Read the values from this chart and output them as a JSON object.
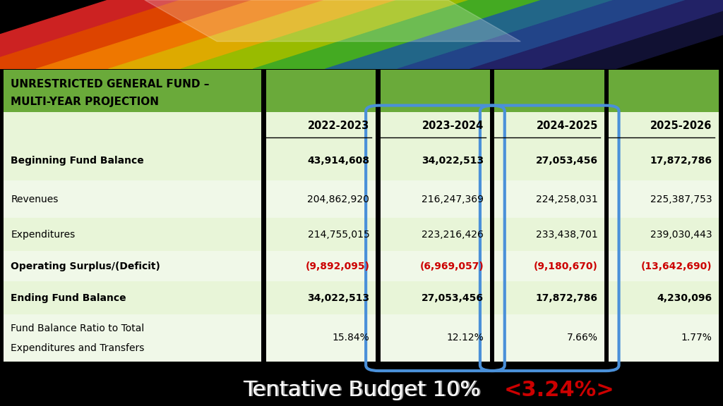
{
  "title_line1": "UNRESTRICTED GENERAL FUND –",
  "title_line2": "MULTI-YEAR PROJECTION",
  "header_bg": "#6aaa3a",
  "col_headers": [
    "2022-2023",
    "2023-2024",
    "2024-2025",
    "2025-2026"
  ],
  "rows": [
    {
      "label": "Beginning Fund Balance",
      "bold": true,
      "values": [
        "43,914,608",
        "34,022,513",
        "27,053,456",
        "17,872,786"
      ],
      "red": [
        false,
        false,
        false,
        false
      ]
    },
    {
      "label": "Revenues",
      "bold": false,
      "values": [
        "204,862,920",
        "216,247,369",
        "224,258,031",
        "225,387,753"
      ],
      "red": [
        false,
        false,
        false,
        false
      ]
    },
    {
      "label": "Expenditures",
      "bold": false,
      "values": [
        "214,755,015",
        "223,216,426",
        "233,438,701",
        "239,030,443"
      ],
      "red": [
        false,
        false,
        false,
        false
      ]
    },
    {
      "label": "Operating Surplus/(Deficit)",
      "bold": true,
      "values": [
        "(9,892,095)",
        "(6,969,057)",
        "(9,180,670)",
        "(13,642,690)"
      ],
      "red": [
        true,
        true,
        true,
        true
      ]
    },
    {
      "label": "Ending Fund Balance",
      "bold": true,
      "values": [
        "34,022,513",
        "27,053,456",
        "17,872,786",
        "4,230,096"
      ],
      "red": [
        false,
        false,
        false,
        false
      ]
    },
    {
      "label": "Fund Balance Ratio to Total\nExpenditures and Transfers",
      "bold": false,
      "values": [
        "15.84%",
        "12.12%",
        "7.66%",
        "1.77%"
      ],
      "red": [
        false,
        false,
        false,
        false
      ]
    }
  ],
  "row_bg_even": "#e8f5d8",
  "row_bg_odd": "#f0f8e8",
  "oval_color": "#4a90d9",
  "footer_white": "Tentative Budget",
  "footer_white2": "10%",
  "footer_red": "<3.24%>",
  "footer_color_white": "#ffffff",
  "footer_color_red": "#cc0000",
  "stripe_colors": [
    "#cc2222",
    "#dd4400",
    "#ee7700",
    "#ddaa00",
    "#99bb00",
    "#44aa22",
    "#226688",
    "#224488",
    "#222266",
    "#111133"
  ]
}
